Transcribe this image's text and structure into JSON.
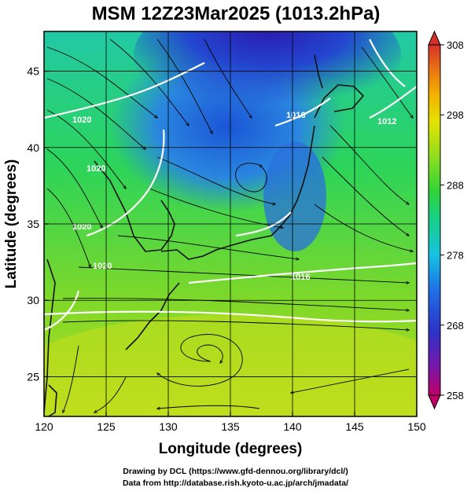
{
  "title": "MSM 12Z23Mar2025 (1013.2hPa)",
  "axes": {
    "xlabel": "Longitude (degrees)",
    "ylabel": "Latitude  (degrees)",
    "xticks": [
      "120",
      "125",
      "130",
      "135",
      "140",
      "145",
      "150"
    ],
    "yticks": [
      "25",
      "30",
      "35",
      "40",
      "45"
    ]
  },
  "colorbar": {
    "ticks": [
      "308",
      "298",
      "288",
      "278",
      "268",
      "258"
    ],
    "colors": [
      "#c0006a",
      "#7a16a8",
      "#2d32c9",
      "#1f70e6",
      "#16c2e0",
      "#18d08a",
      "#2fd338",
      "#8ddd1e",
      "#e5e300",
      "#f2b000",
      "#e66a16",
      "#d4312a"
    ]
  },
  "isobar_labels": [
    "1020",
    "1016",
    "1012",
    "1020",
    "1020",
    "1016",
    "1020"
  ],
  "credits": {
    "line1": "Drawing by DCL (https://www.gfd-dennou.org/library/dcl/)",
    "line2": "Data from http://database.rish.kyoto-u.ac.jp/arch/jmadata/"
  },
  "chart_data": {
    "type": "heatmap",
    "title": "MSM 12Z23Mar2025 (1013.2hPa)",
    "xlabel": "Longitude (degrees)",
    "ylabel": "Latitude  (degrees)",
    "xlim": [
      120,
      150
    ],
    "ylim": [
      22.4,
      47.6
    ],
    "colorbar_range": [
      258,
      308
    ],
    "fields": [
      "temperature (shaded)",
      "isobars (white contours)",
      "wind streamlines (black)"
    ]
  }
}
